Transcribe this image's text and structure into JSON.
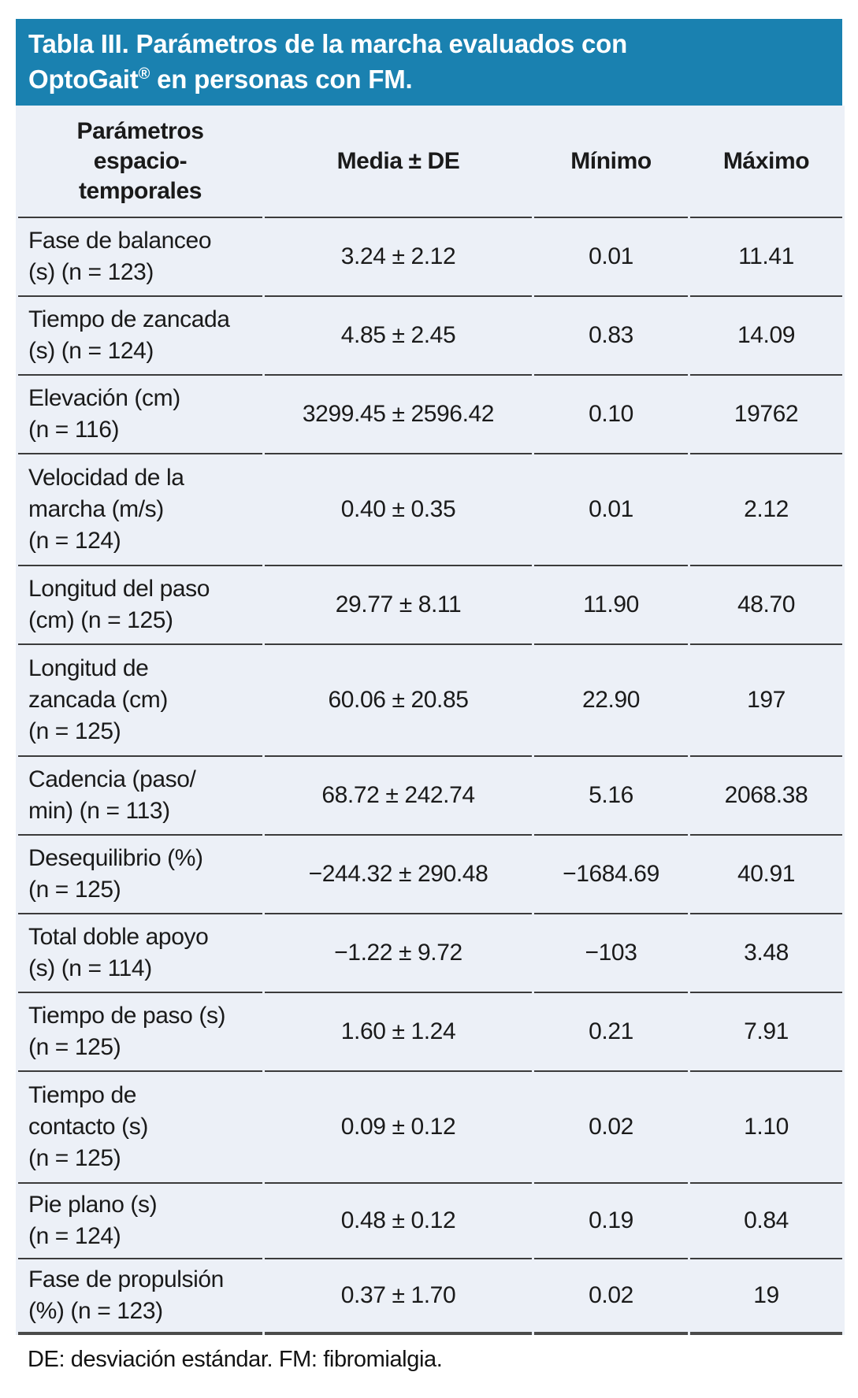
{
  "title": {
    "line1": "Tabla III. Parámetros de la marcha evaluados con",
    "line2_product": "OptoGait",
    "line2_reg": "®",
    "line2_rest": " en personas con FM."
  },
  "columns": {
    "param": "Parámetros\nespacio-\ntemporales",
    "media": "Media ± DE",
    "min": "Mínimo",
    "max": "Máximo"
  },
  "rows": [
    {
      "param": "Fase de balanceo\n(s) (n = 123)",
      "media": "3.24 ± 2.12",
      "min": "0.01",
      "max": "11.41"
    },
    {
      "param": "Tiempo de zancada\n(s) (n = 124)",
      "media": "4.85 ± 2.45",
      "min": "0.83",
      "max": "14.09"
    },
    {
      "param": "Elevación (cm)\n(n = 116)",
      "media": "3299.45 ± 2596.42",
      "min": "0.10",
      "max": "19762"
    },
    {
      "param": "Velocidad de la\nmarcha (m/s)\n(n = 124)",
      "media": "0.40 ± 0.35",
      "min": "0.01",
      "max": "2.12"
    },
    {
      "param": "Longitud del paso\n(cm) (n = 125)",
      "media": "29.77 ± 8.11",
      "min": "11.90",
      "max": "48.70"
    },
    {
      "param": "Longitud de\nzancada (cm)\n(n = 125)",
      "media": "60.06 ± 20.85",
      "min": "22.90",
      "max": "197"
    },
    {
      "param": "Cadencia (paso/\nmin) (n = 113)",
      "media": "68.72 ± 242.74",
      "min": "5.16",
      "max": "2068.38"
    },
    {
      "param": "Desequilibrio (%)\n(n = 125)",
      "media": "−244.32 ± 290.48",
      "min": "−1684.69",
      "max": "40.91"
    },
    {
      "param": "Total doble apoyo\n(s) (n = 114)",
      "media": "−1.22 ± 9.72",
      "min": "−103",
      "max": "3.48"
    },
    {
      "param": "Tiempo de paso (s)\n(n = 125)",
      "media": "1.60 ± 1.24",
      "min": "0.21",
      "max": "7.91"
    },
    {
      "param": "Tiempo de\ncontacto (s)\n(n = 125)",
      "media": "0.09 ± 0.12",
      "min": "0.02",
      "max": "1.10"
    },
    {
      "param": "Pie plano (s)\n(n = 124)",
      "media": "0.48 ± 0.12",
      "min": "0.19",
      "max": "0.84"
    },
    {
      "param": "Fase de propulsión\n(%) (n = 123)",
      "media": "0.37 ± 1.70",
      "min": "0.02",
      "max": "19"
    }
  ],
  "footnote": "DE: desviación estándar. FM: fibromialgia.",
  "colors": {
    "banner": "#1a81b0",
    "row_bg": "#ecf0f7",
    "divider": "#3b3b3b",
    "text": "#1a1a1a"
  }
}
